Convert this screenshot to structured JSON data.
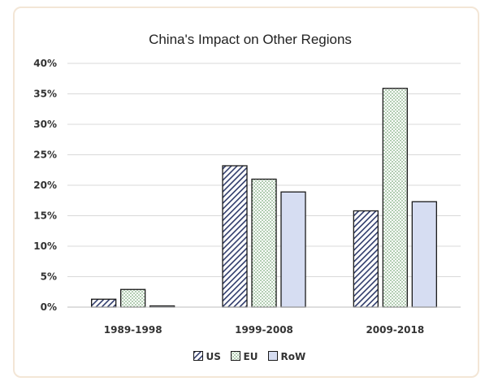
{
  "chart_data": {
    "type": "bar",
    "title": "China's Impact on Other Regions",
    "xlabel": "",
    "ylabel": "",
    "categories": [
      "1989-1998",
      "1999-2008",
      "2009-2018"
    ],
    "series": [
      {
        "name": "US",
        "values": [
          1.3,
          23.2,
          15.8
        ],
        "pattern": "diagonal-hatch",
        "color": "#2f3b6b"
      },
      {
        "name": "EU",
        "values": [
          2.9,
          21.0,
          35.9
        ],
        "pattern": "dots",
        "color": "#4a8a4a"
      },
      {
        "name": "RoW",
        "values": [
          0.2,
          18.9,
          17.3
        ],
        "pattern": "solid",
        "color": "#d6ddf2"
      }
    ],
    "ylim": [
      0,
      40
    ],
    "yticks": [
      0,
      5,
      10,
      15,
      20,
      25,
      30,
      35,
      40
    ],
    "ytick_labels": [
      "0%",
      "5%",
      "10%",
      "15%",
      "20%",
      "25%",
      "30%",
      "35%",
      "40%"
    ],
    "grid": true,
    "legend": "bottom-center",
    "frame_color": "#f3e6d6"
  }
}
